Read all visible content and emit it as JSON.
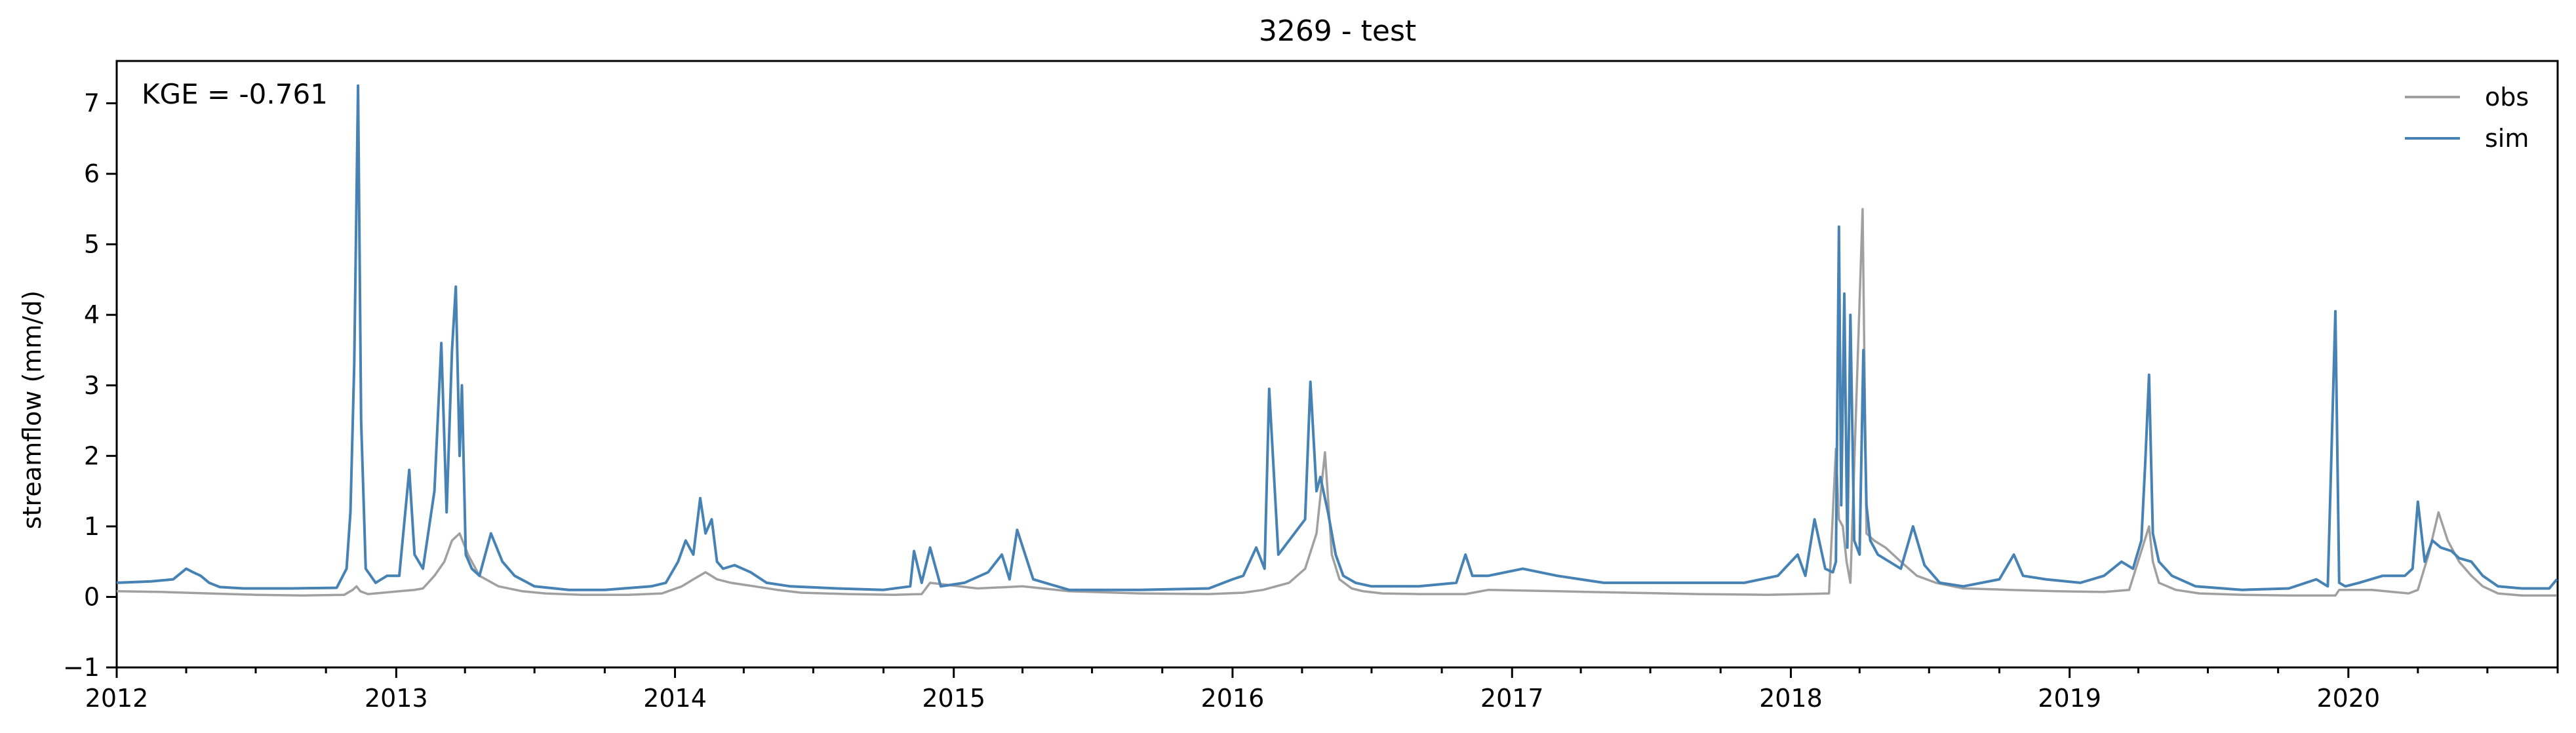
{
  "chart_data": {
    "type": "line",
    "title": "3269 - test",
    "xlabel": "",
    "ylabel": "streamflow (mm/d)",
    "xlim": [
      "2012-01-01",
      "2020-10-01"
    ],
    "ylim": [
      -1,
      7.6
    ],
    "x_ticks": [
      "2012",
      "2013",
      "2014",
      "2015",
      "2016",
      "2017",
      "2018",
      "2019",
      "2020"
    ],
    "y_ticks": [
      -1,
      0,
      1,
      2,
      3,
      4,
      5,
      6,
      7
    ],
    "grid": false,
    "legend_position": "top-right",
    "annotation": "KGE = -0.761",
    "colors": {
      "obs": "#a0a0a0",
      "sim": "#4682b4"
    },
    "series": [
      {
        "name": "obs",
        "x": [
          "2012-01-01",
          "2012-03-01",
          "2012-05-01",
          "2012-07-01",
          "2012-09-01",
          "2012-10-25",
          "2012-11-05",
          "2012-11-10",
          "2012-11-15",
          "2012-11-25",
          "2012-12-15",
          "2013-01-05",
          "2013-01-25",
          "2013-02-05",
          "2013-02-20",
          "2013-03-05",
          "2013-03-15",
          "2013-03-25",
          "2013-04-05",
          "2013-04-20",
          "2013-05-15",
          "2013-06-15",
          "2013-07-15",
          "2013-09-01",
          "2013-11-01",
          "2013-12-15",
          "2014-01-10",
          "2014-01-25",
          "2014-02-10",
          "2014-02-25",
          "2014-03-15",
          "2014-04-15",
          "2014-05-15",
          "2014-06-15",
          "2014-08-15",
          "2014-10-15",
          "2014-11-20",
          "2014-12-01",
          "2015-02-01",
          "2015-04-01",
          "2015-06-01",
          "2015-09-01",
          "2015-12-01",
          "2016-01-15",
          "2016-02-10",
          "2016-03-15",
          "2016-04-05",
          "2016-04-20",
          "2016-05-01",
          "2016-05-10",
          "2016-05-20",
          "2016-06-05",
          "2016-06-20",
          "2016-07-15",
          "2016-09-01",
          "2016-11-01",
          "2016-12-01",
          "2017-03-01",
          "2017-06-01",
          "2017-09-01",
          "2017-12-01",
          "2018-01-15",
          "2018-02-20",
          "2018-03-01",
          "2018-03-05",
          "2018-03-10",
          "2018-03-15",
          "2018-03-20",
          "2018-04-05",
          "2018-04-10",
          "2018-04-20",
          "2018-05-05",
          "2018-05-25",
          "2018-06-15",
          "2018-07-10",
          "2018-08-15",
          "2018-10-15",
          "2018-12-15",
          "2019-02-15",
          "2019-03-20",
          "2019-04-15",
          "2019-04-20",
          "2019-04-28",
          "2019-05-20",
          "2019-06-20",
          "2019-08-15",
          "2019-10-15",
          "2019-12-15",
          "2019-12-20",
          "2020-02-01",
          "2020-03-20",
          "2020-04-01",
          "2020-04-15",
          "2020-04-28",
          "2020-05-10",
          "2020-05-25",
          "2020-06-10",
          "2020-06-25",
          "2020-07-15",
          "2020-08-15",
          "2020-09-30"
        ],
        "values": [
          0.08,
          0.07,
          0.05,
          0.03,
          0.02,
          0.03,
          0.1,
          0.15,
          0.08,
          0.04,
          0.06,
          0.08,
          0.1,
          0.12,
          0.3,
          0.5,
          0.8,
          0.9,
          0.6,
          0.3,
          0.15,
          0.08,
          0.05,
          0.03,
          0.03,
          0.05,
          0.15,
          0.25,
          0.35,
          0.25,
          0.2,
          0.15,
          0.1,
          0.06,
          0.04,
          0.03,
          0.04,
          0.2,
          0.12,
          0.15,
          0.08,
          0.05,
          0.04,
          0.06,
          0.1,
          0.2,
          0.4,
          0.9,
          2.05,
          0.6,
          0.25,
          0.12,
          0.08,
          0.05,
          0.04,
          0.04,
          0.1,
          0.08,
          0.06,
          0.04,
          0.03,
          0.04,
          0.05,
          2.1,
          1.1,
          1.0,
          0.5,
          0.2,
          5.5,
          0.9,
          0.8,
          0.7,
          0.5,
          0.3,
          0.2,
          0.12,
          0.1,
          0.08,
          0.07,
          0.1,
          1.0,
          0.5,
          0.2,
          0.1,
          0.05,
          0.03,
          0.02,
          0.02,
          0.1,
          0.1,
          0.05,
          0.1,
          0.6,
          1.2,
          0.8,
          0.5,
          0.3,
          0.15,
          0.05,
          0.02,
          0.02
        ]
      },
      {
        "name": "sim",
        "x": [
          "2012-01-01",
          "2012-02-15",
          "2012-03-15",
          "2012-04-01",
          "2012-04-10",
          "2012-04-20",
          "2012-05-01",
          "2012-05-15",
          "2012-06-15",
          "2012-08-15",
          "2012-10-15",
          "2012-10-28",
          "2012-11-02",
          "2012-11-07",
          "2012-11-12",
          "2012-11-16",
          "2012-11-22",
          "2012-12-05",
          "2012-12-20",
          "2013-01-05",
          "2013-01-18",
          "2013-01-25",
          "2013-02-05",
          "2013-02-20",
          "2013-03-01",
          "2013-03-08",
          "2013-03-15",
          "2013-03-20",
          "2013-03-25",
          "2013-03-28",
          "2013-04-02",
          "2013-04-10",
          "2013-04-20",
          "2013-05-05",
          "2013-05-20",
          "2013-06-05",
          "2013-07-01",
          "2013-08-15",
          "2013-10-01",
          "2013-12-01",
          "2013-12-20",
          "2014-01-05",
          "2014-01-15",
          "2014-01-25",
          "2014-02-03",
          "2014-02-10",
          "2014-02-18",
          "2014-02-25",
          "2014-03-05",
          "2014-03-20",
          "2014-04-10",
          "2014-05-01",
          "2014-06-01",
          "2014-08-01",
          "2014-10-01",
          "2014-11-05",
          "2014-11-10",
          "2014-11-20",
          "2014-12-01",
          "2014-12-15",
          "2015-01-15",
          "2015-02-15",
          "2015-03-05",
          "2015-03-15",
          "2015-03-25",
          "2015-04-15",
          "2015-06-01",
          "2015-09-01",
          "2015-12-01",
          "2016-01-01",
          "2016-01-15",
          "2016-02-01",
          "2016-02-12",
          "2016-02-18",
          "2016-03-01",
          "2016-03-15",
          "2016-04-05",
          "2016-04-12",
          "2016-04-20",
          "2016-04-25",
          "2016-05-05",
          "2016-05-15",
          "2016-05-25",
          "2016-06-10",
          "2016-07-01",
          "2016-09-01",
          "2016-10-20",
          "2016-11-01",
          "2016-11-10",
          "2016-12-01",
          "2017-01-15",
          "2017-03-01",
          "2017-05-01",
          "2017-07-01",
          "2017-09-01",
          "2017-11-01",
          "2017-12-15",
          "2018-01-10",
          "2018-01-20",
          "2018-02-01",
          "2018-02-15",
          "2018-02-25",
          "2018-03-01",
          "2018-03-05",
          "2018-03-08",
          "2018-03-12",
          "2018-03-16",
          "2018-03-20",
          "2018-03-25",
          "2018-04-01",
          "2018-04-06",
          "2018-04-10",
          "2018-04-15",
          "2018-04-25",
          "2018-05-10",
          "2018-05-25",
          "2018-06-10",
          "2018-06-25",
          "2018-07-15",
          "2018-08-15",
          "2018-10-01",
          "2018-10-20",
          "2018-11-01",
          "2018-12-01",
          "2019-01-15",
          "2019-02-15",
          "2019-03-10",
          "2019-03-25",
          "2019-04-05",
          "2019-04-10",
          "2019-04-15",
          "2019-04-20",
          "2019-04-28",
          "2019-05-15",
          "2019-06-15",
          "2019-08-15",
          "2019-10-15",
          "2019-11-20",
          "2019-12-05",
          "2019-12-15",
          "2019-12-20",
          "2019-12-28",
          "2020-01-15",
          "2020-02-15",
          "2020-03-15",
          "2020-03-25",
          "2020-04-01",
          "2020-04-10",
          "2020-04-20",
          "2020-05-01",
          "2020-05-15",
          "2020-05-25",
          "2020-06-10",
          "2020-06-25",
          "2020-07-15",
          "2020-08-15",
          "2020-09-20",
          "2020-09-30"
        ],
        "values": [
          0.2,
          0.22,
          0.25,
          0.4,
          0.35,
          0.3,
          0.2,
          0.14,
          0.12,
          0.12,
          0.13,
          0.4,
          1.2,
          3.3,
          7.25,
          2.5,
          0.4,
          0.2,
          0.3,
          0.3,
          1.8,
          0.6,
          0.4,
          1.5,
          3.6,
          1.2,
          3.5,
          4.4,
          2.0,
          3.0,
          0.6,
          0.4,
          0.3,
          0.9,
          0.5,
          0.3,
          0.15,
          0.1,
          0.1,
          0.15,
          0.2,
          0.5,
          0.8,
          0.6,
          1.4,
          0.9,
          1.1,
          0.5,
          0.4,
          0.45,
          0.35,
          0.2,
          0.15,
          0.12,
          0.1,
          0.15,
          0.65,
          0.2,
          0.7,
          0.15,
          0.2,
          0.35,
          0.6,
          0.25,
          0.95,
          0.25,
          0.1,
          0.1,
          0.12,
          0.25,
          0.3,
          0.7,
          0.4,
          2.95,
          0.6,
          0.8,
          1.1,
          3.05,
          1.5,
          1.7,
          1.2,
          0.6,
          0.3,
          0.2,
          0.15,
          0.15,
          0.2,
          0.6,
          0.3,
          0.3,
          0.4,
          0.3,
          0.2,
          0.2,
          0.2,
          0.2,
          0.3,
          0.6,
          0.3,
          1.1,
          0.4,
          0.35,
          0.5,
          5.25,
          1.3,
          4.3,
          0.7,
          4.0,
          0.8,
          0.6,
          3.5,
          1.3,
          0.8,
          0.6,
          0.5,
          0.4,
          1.0,
          0.45,
          0.2,
          0.15,
          0.25,
          0.6,
          0.3,
          0.25,
          0.2,
          0.3,
          0.5,
          0.4,
          0.8,
          1.9,
          3.15,
          0.9,
          0.5,
          0.3,
          0.15,
          0.1,
          0.12,
          0.25,
          0.15,
          4.05,
          0.2,
          0.15,
          0.2,
          0.3,
          0.3,
          0.4,
          1.35,
          0.5,
          0.8,
          0.7,
          0.65,
          0.55,
          0.5,
          0.3,
          0.15,
          0.12,
          0.12,
          0.25
        ]
      }
    ]
  }
}
